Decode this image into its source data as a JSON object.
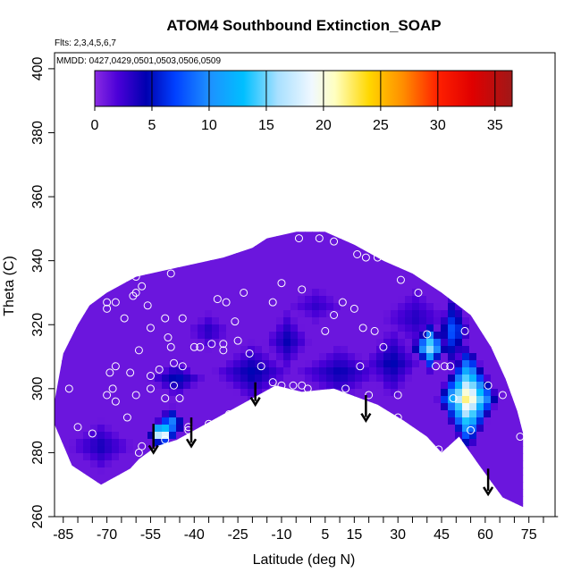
{
  "chart_data": {
    "type": "heatmap",
    "title": "ATOM4 Southbound Extinction_SOAP",
    "annotations": [
      "Flts: 2,3,4,5,6,7",
      "MMDD: 0427,0429,0501,0503,0506,0509"
    ],
    "xlabel": "Latitude (deg N)",
    "ylabel": "Theta (C)",
    "xlim": [
      -88,
      84
    ],
    "ylim": [
      260,
      405
    ],
    "x_ticks": [
      -85,
      -70,
      -55,
      -40,
      -25,
      -10,
      5,
      15,
      30,
      45,
      60,
      75
    ],
    "x_tick_labels": [
      "-85",
      "-70",
      "-55",
      "-40",
      "-25",
      "-10",
      "5",
      "15",
      "30",
      "45",
      "60",
      "75"
    ],
    "x_minor_step": 5,
    "y_ticks": [
      260,
      280,
      300,
      320,
      340,
      360,
      380,
      400
    ],
    "y_tick_labels": [
      "260",
      "280",
      "300",
      "320",
      "340",
      "360",
      "380",
      "400"
    ],
    "colorbar": {
      "min": 0,
      "max": 36.5,
      "ticks": [
        0,
        5,
        10,
        15,
        20,
        25,
        30,
        35
      ],
      "tick_labels": [
        "0",
        "5",
        "10",
        "15",
        "20",
        "25",
        "30",
        "35"
      ],
      "colors": [
        [
          0,
          "#8a2be2"
        ],
        [
          2,
          "#4b00d8"
        ],
        [
          4.5,
          "#0000b0"
        ],
        [
          7,
          "#0040ff"
        ],
        [
          10,
          "#1e90ff"
        ],
        [
          13,
          "#00bfff"
        ],
        [
          16,
          "#a8e0ff"
        ],
        [
          19,
          "#f0f8ff"
        ],
        [
          21,
          "#ffffc0"
        ],
        [
          24,
          "#ffd700"
        ],
        [
          27,
          "#ff8c00"
        ],
        [
          30,
          "#ff2000"
        ],
        [
          33,
          "#e00000"
        ],
        [
          36.5,
          "#a01818"
        ]
      ]
    },
    "tropopause_path": [
      [
        -59,
        278
      ],
      [
        -53,
        282
      ],
      [
        -46,
        284
      ],
      [
        -40,
        287
      ],
      [
        -30,
        292
      ],
      [
        -20,
        297
      ],
      [
        -12,
        301
      ],
      [
        -3,
        299
      ],
      [
        8,
        300
      ],
      [
        17,
        297
      ],
      [
        23,
        295
      ],
      [
        32,
        290
      ],
      [
        40,
        285
      ],
      [
        45,
        280
      ],
      [
        51,
        285
      ],
      [
        58,
        276
      ],
      [
        66,
        266
      ],
      [
        73,
        263
      ]
    ],
    "domain_top": [
      [
        -89,
        291
      ],
      [
        -85,
        311
      ],
      [
        -80,
        320
      ],
      [
        -76,
        326
      ],
      [
        -70,
        330
      ],
      [
        -60,
        335
      ],
      [
        -50,
        337
      ],
      [
        -40,
        339
      ],
      [
        -30,
        341
      ],
      [
        -20,
        344
      ],
      [
        -15,
        347
      ],
      [
        -5,
        349
      ],
      [
        5,
        349
      ],
      [
        15,
        345
      ],
      [
        25,
        340
      ],
      [
        35,
        336
      ],
      [
        45,
        330
      ],
      [
        55,
        323
      ],
      [
        62,
        313
      ],
      [
        67,
        303
      ],
      [
        71,
        293
      ],
      [
        73,
        286
      ],
      [
        73,
        263
      ]
    ],
    "domain_bottom_left": [
      [
        -89,
        291
      ],
      [
        -82,
        276
      ],
      [
        -72,
        270
      ],
      [
        -62,
        275
      ],
      [
        -59,
        278
      ]
    ],
    "blobs": [
      {
        "x": 54,
        "y": 297,
        "rx": 11,
        "ry": 18,
        "peak": 24
      },
      {
        "x": 41,
        "y": 313,
        "rx": 7,
        "ry": 8,
        "peak": 17
      },
      {
        "x": 49,
        "y": 318,
        "rx": 6,
        "ry": 14,
        "peak": 9
      },
      {
        "x": -51,
        "y": 286,
        "rx": 5,
        "ry": 5,
        "peak": 27
      },
      {
        "x": -48,
        "y": 289,
        "rx": 6,
        "ry": 6,
        "peak": 12
      },
      {
        "x": -46,
        "y": 303,
        "rx": 10,
        "ry": 6,
        "peak": 5.5
      },
      {
        "x": -20,
        "y": 305,
        "rx": 14,
        "ry": 10,
        "peak": 5
      },
      {
        "x": -8,
        "y": 315,
        "rx": 8,
        "ry": 10,
        "peak": 4.5
      },
      {
        "x": 10,
        "y": 305,
        "rx": 16,
        "ry": 9,
        "peak": 4.5
      },
      {
        "x": 28,
        "y": 308,
        "rx": 10,
        "ry": 12,
        "peak": 5
      },
      {
        "x": -72,
        "y": 282,
        "rx": 12,
        "ry": 8,
        "peak": 4
      },
      {
        "x": -35,
        "y": 318,
        "rx": 8,
        "ry": 6,
        "peak": 3.5
      },
      {
        "x": 36,
        "y": 322,
        "rx": 12,
        "ry": 10,
        "peak": 3.5
      },
      {
        "x": 2,
        "y": 326,
        "rx": 10,
        "ry": 6,
        "peak": 3
      }
    ],
    "base_value": 1,
    "obs_points": [
      [
        -71,
        331
      ],
      [
        -70,
        327
      ],
      [
        -70,
        325
      ],
      [
        -67,
        327
      ],
      [
        -64,
        322
      ],
      [
        -61,
        329
      ],
      [
        -56,
        326
      ],
      [
        -58,
        332
      ],
      [
        -55,
        319
      ],
      [
        -50,
        322
      ],
      [
        -49,
        316
      ],
      [
        -48,
        313
      ],
      [
        -44,
        322
      ],
      [
        -47,
        308
      ],
      [
        -52,
        306
      ],
      [
        -55,
        304
      ],
      [
        -59,
        312
      ],
      [
        -62,
        305
      ],
      [
        -67,
        307
      ],
      [
        -69,
        305
      ],
      [
        -68,
        300
      ],
      [
        -70,
        298
      ],
      [
        -67,
        296
      ],
      [
        -75,
        286
      ],
      [
        -80,
        288
      ],
      [
        -83,
        300
      ],
      [
        -86,
        317
      ],
      [
        -82,
        320
      ],
      [
        -60,
        298
      ],
      [
        -63,
        291
      ],
      [
        -55,
        300
      ],
      [
        -50,
        297
      ],
      [
        -47,
        301
      ],
      [
        -44,
        307
      ],
      [
        -45,
        297
      ],
      [
        -42,
        287
      ],
      [
        -40,
        313
      ],
      [
        -38,
        313
      ],
      [
        -34,
        314
      ],
      [
        -30,
        314
      ],
      [
        -32,
        328
      ],
      [
        -29,
        327
      ],
      [
        -26,
        321
      ],
      [
        -25,
        315
      ],
      [
        -23,
        330
      ],
      [
        -30,
        312
      ],
      [
        -21,
        311
      ],
      [
        -17,
        307
      ],
      [
        -13,
        302
      ],
      [
        -6,
        301
      ],
      [
        -13,
        327
      ],
      [
        -10,
        333
      ],
      [
        -3,
        331
      ],
      [
        -4,
        347
      ],
      [
        3,
        347
      ],
      [
        8,
        346
      ],
      [
        16,
        342
      ],
      [
        19,
        341
      ],
      [
        23,
        341
      ],
      [
        5,
        318
      ],
      [
        8,
        323
      ],
      [
        11,
        327
      ],
      [
        15,
        325
      ],
      [
        18,
        319
      ],
      [
        17,
        307
      ],
      [
        22,
        318
      ],
      [
        25,
        313
      ],
      [
        31,
        334
      ],
      [
        37,
        330
      ],
      [
        30,
        298
      ],
      [
        40,
        317
      ],
      [
        43,
        307
      ],
      [
        46,
        307
      ],
      [
        48,
        307
      ],
      [
        44,
        281
      ],
      [
        49,
        297
      ],
      [
        53,
        318
      ],
      [
        55,
        287
      ],
      [
        61,
        301
      ],
      [
        66,
        298
      ],
      [
        72,
        285
      ],
      [
        -10,
        301
      ],
      [
        -3,
        301
      ],
      [
        -1,
        300
      ],
      [
        12,
        300
      ],
      [
        20,
        298
      ],
      [
        30,
        291
      ],
      [
        -50,
        284
      ],
      [
        -58,
        282
      ],
      [
        -59,
        280
      ],
      [
        -28,
        292
      ],
      [
        -35,
        289
      ],
      [
        -42,
        288
      ],
      [
        -68,
        268
      ],
      [
        -48,
        336
      ],
      [
        -60,
        330
      ],
      [
        -60,
        335
      ],
      [
        -17,
        349
      ],
      [
        -14,
        350
      ]
    ],
    "arrows": [
      [
        -54,
        289,
        280
      ],
      [
        -41,
        291,
        282
      ],
      [
        -19,
        302,
        295
      ],
      [
        19,
        298,
        290
      ],
      [
        61,
        275,
        267
      ]
    ]
  }
}
